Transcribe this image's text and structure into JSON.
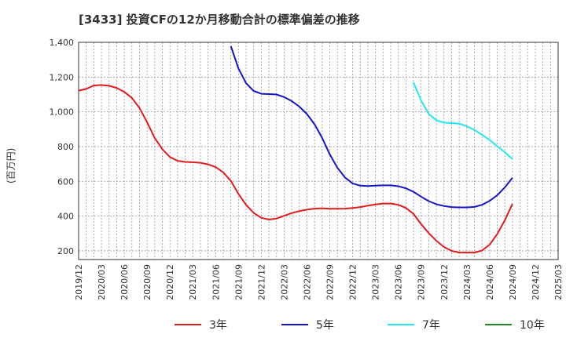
{
  "chart_data": {
    "type": "line",
    "title": "[3433]  投資CFの12か月移動合計の標準偏差の推移",
    "ylabel": "(百万円)",
    "xlabel": "",
    "ylim": [
      150,
      1400
    ],
    "yticks": [
      200,
      400,
      600,
      800,
      1000,
      1200,
      1400
    ],
    "ytick_labels": [
      "200",
      "400",
      "600",
      "800",
      "1,000",
      "1,200",
      "1,400"
    ],
    "x_start": "2019-12",
    "xticks": [
      "2019/12",
      "2020/03",
      "2020/06",
      "2020/09",
      "2020/12",
      "2021/03",
      "2021/06",
      "2021/09",
      "2021/12",
      "2022/03",
      "2022/06",
      "2022/09",
      "2022/12",
      "2023/03",
      "2023/06",
      "2023/09",
      "2023/12",
      "2024/03",
      "2024/06",
      "2024/09",
      "2024/12",
      "2025/03"
    ],
    "grid": true,
    "legend_position": "bottom",
    "series": [
      {
        "name": "3年",
        "color": "#e41a1c",
        "start": "2019-12",
        "values": [
          1122,
          1132,
          1152,
          1154,
          1150,
          1138,
          1115,
          1080,
          1022,
          940,
          850,
          785,
          740,
          718,
          712,
          710,
          707,
          698,
          682,
          652,
          602,
          528,
          465,
          418,
          390,
          380,
          386,
          402,
          417,
          429,
          437,
          443,
          445,
          442,
          442,
          443,
          447,
          452,
          460,
          467,
          472,
          472,
          465,
          447,
          412,
          354,
          302,
          258,
          222,
          200,
          190,
          190,
          190,
          202,
          236,
          296,
          376,
          470
        ]
      },
      {
        "name": "5年",
        "color": "#1515c8",
        "start": "2021-08",
        "values": [
          1378,
          1250,
          1165,
          1120,
          1104,
          1102,
          1100,
          1085,
          1062,
          1030,
          987,
          928,
          850,
          755,
          678,
          622,
          588,
          575,
          573,
          575,
          577,
          577,
          572,
          560,
          540,
          512,
          486,
          468,
          458,
          452,
          450,
          450,
          453,
          465,
          488,
          520,
          565,
          620
        ]
      },
      {
        "name": "7年",
        "color": "#22e8f0",
        "start": "2023-08",
        "values": [
          1170,
          1065,
          988,
          952,
          938,
          935,
          932,
          917,
          896,
          868,
          838,
          802,
          768,
          728
        ]
      },
      {
        "name": "10年",
        "color": "#228b22",
        "start": "2023-08",
        "values": []
      }
    ]
  }
}
